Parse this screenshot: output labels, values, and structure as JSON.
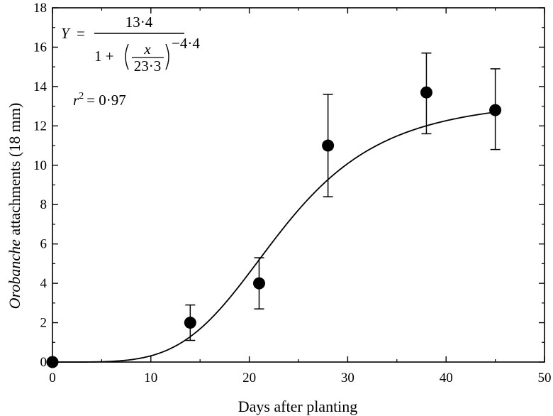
{
  "chart_data": {
    "type": "scatter",
    "xlabel": "Days after planting",
    "ylabel_italic": "Orobanche",
    "ylabel_rest": " attachments (18 mm)",
    "xlim": [
      0,
      50
    ],
    "ylim": [
      0,
      18
    ],
    "xticks": [
      "0",
      "10",
      "20",
      "30",
      "40",
      "50"
    ],
    "yticks": [
      "0",
      "2",
      "4",
      "6",
      "8",
      "10",
      "12",
      "14",
      "16",
      "18"
    ],
    "grid": false,
    "points": [
      {
        "x": 0,
        "y": 0,
        "err_low": 0,
        "err_high": 0
      },
      {
        "x": 14,
        "y": 2.0,
        "err_low": 1.1,
        "err_high": 2.9
      },
      {
        "x": 21,
        "y": 4.0,
        "err_low": 2.7,
        "err_high": 5.3
      },
      {
        "x": 28,
        "y": 11.0,
        "err_low": 8.4,
        "err_high": 13.6
      },
      {
        "x": 38,
        "y": 13.7,
        "err_low": 11.6,
        "err_high": 15.7
      },
      {
        "x": 45,
        "y": 12.8,
        "err_low": 10.8,
        "err_high": 14.9
      }
    ],
    "fit": {
      "a": 13.4,
      "b": 23.3,
      "c": -4.4,
      "x_range": [
        0,
        45
      ]
    },
    "annotation": {
      "y_var": "Y",
      "equals": "=",
      "numerator": "13·4",
      "one_plus": "1 +",
      "x_var": "x",
      "denominator_inner": "23·3",
      "exponent": "−4·4",
      "r2_label": "r",
      "r2_sup": "2",
      "r2_value": "= 0·97"
    }
  }
}
